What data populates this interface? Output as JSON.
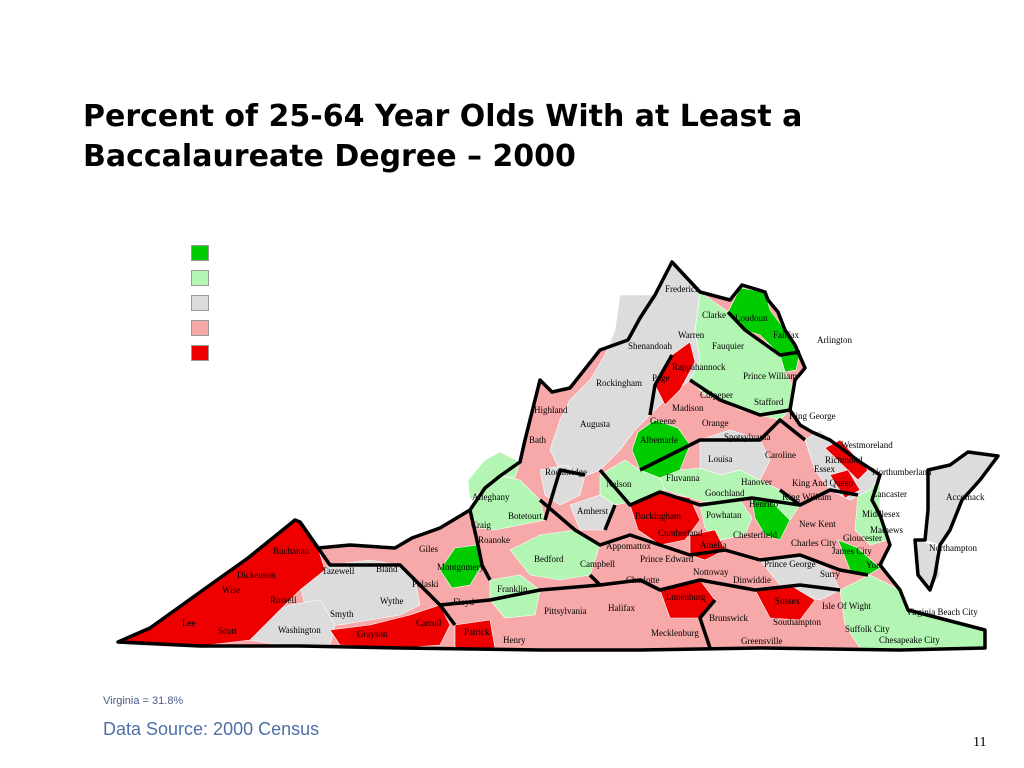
{
  "title": "Percent of 25-64 Year Olds With at Least a Baccalaureate Degree – 2000",
  "legend": {
    "colors": [
      "#00cc00",
      "#b3f5b3",
      "#dcdcdc",
      "#f7a8a8",
      "#ee0000"
    ]
  },
  "note": "Virginia = 31.8%",
  "source": "Data Source:  2000 Census",
  "page_number": "11",
  "map_colors": {
    "dark_green": "#00cc00",
    "light_green": "#b3f5b3",
    "gray": "#dcdcdc",
    "pink": "#f7a8a8",
    "red": "#ee0000",
    "boundary": "#000000"
  },
  "counties": {
    "frederick": "Frederick",
    "clarke": "Clarke",
    "loudoun": "Loudoun",
    "warren": "Warren",
    "fairfax": "Fairfax",
    "arlington": "Arlington",
    "shenandoah": "Shenandoah",
    "fauquier": "Fauquier",
    "rappahannock": "Rappahannock",
    "page": "Page",
    "prince_william": "Prince William",
    "rockingham": "Rockingham",
    "culpeper": "Culpeper",
    "stafford": "Stafford",
    "highland": "Highland",
    "augusta": "Augusta",
    "madison": "Madison",
    "greene": "Greene",
    "orange": "Orange",
    "king_george": "King George",
    "bath": "Bath",
    "albemarle": "Albemarle",
    "spotsylvania": "Spotsylvania",
    "westmoreland": "Westmoreland",
    "richmond": "Richmond",
    "louisa": "Louisa",
    "caroline": "Caroline",
    "essex": "Essex",
    "northumberland": "Northumberland",
    "rockbridge": "Rockbridge",
    "fluvanna": "Fluvanna",
    "hanover": "Hanover",
    "king_and_queen": "King And Queen",
    "nelson": "Nelson",
    "alleghany": "Alleghany",
    "goochland": "Goochland",
    "king_william": "King William",
    "lancaster": "Lancaster",
    "accomack": "Accomack",
    "botetourt": "Botetourt",
    "amherst": "Amherst",
    "buckingham": "Buckingham",
    "powhatan": "Powhatan",
    "henrico": "Henrico",
    "middlesex": "Middlesex",
    "craig": "Craig",
    "cumberland": "Cumberland",
    "new_kent": "New Kent",
    "mathews": "Mathews",
    "roanoke": "Roanoke",
    "chesterfield": "Chesterfield",
    "gloucester": "Gloucester",
    "buchanan": "Buchanan",
    "giles": "Giles",
    "appomattox": "Appomattox",
    "amelia": "Amelia",
    "charles_city": "Charles City",
    "james_city": "James City",
    "northampton": "Northampton",
    "bedford": "Bedford",
    "prince_edward": "Prince Edward",
    "york": "York",
    "montgomery": "Montgomery",
    "dickenson": "Dickenson",
    "tazewell": "Tazewell",
    "bland": "Bland",
    "campbell": "Campbell",
    "prince_george": "Prince George",
    "nottoway": "Nottoway",
    "pulaski": "Pulaski",
    "surry": "Surry",
    "wise": "Wise",
    "charlotte": "Charlotte",
    "dinwiddie": "Dinwiddie",
    "franklin": "Franklin",
    "russell": "Russell",
    "wythe": "Wythe",
    "floyd": "Floyd",
    "lunenburg": "Lunenburg",
    "sussex": "Sussex",
    "isle_of_wight": "Isle Of Wight",
    "virginia_beach": "Virginia Beach City",
    "smyth": "Smyth",
    "halifax": "Halifax",
    "pittsylvania": "Pittsylvania",
    "brunswick": "Brunswick",
    "lee": "Lee",
    "carroll": "Carroll",
    "southampton": "Southampton",
    "suffolk": "Suffolk City",
    "scott": "Scott",
    "washington": "Washington",
    "grayson": "Grayson",
    "patrick": "Patrick",
    "mecklenburg": "Mecklenburg",
    "chesapeake": "Chesapeake City",
    "henry": "Henry",
    "greensville": "Greensville"
  }
}
